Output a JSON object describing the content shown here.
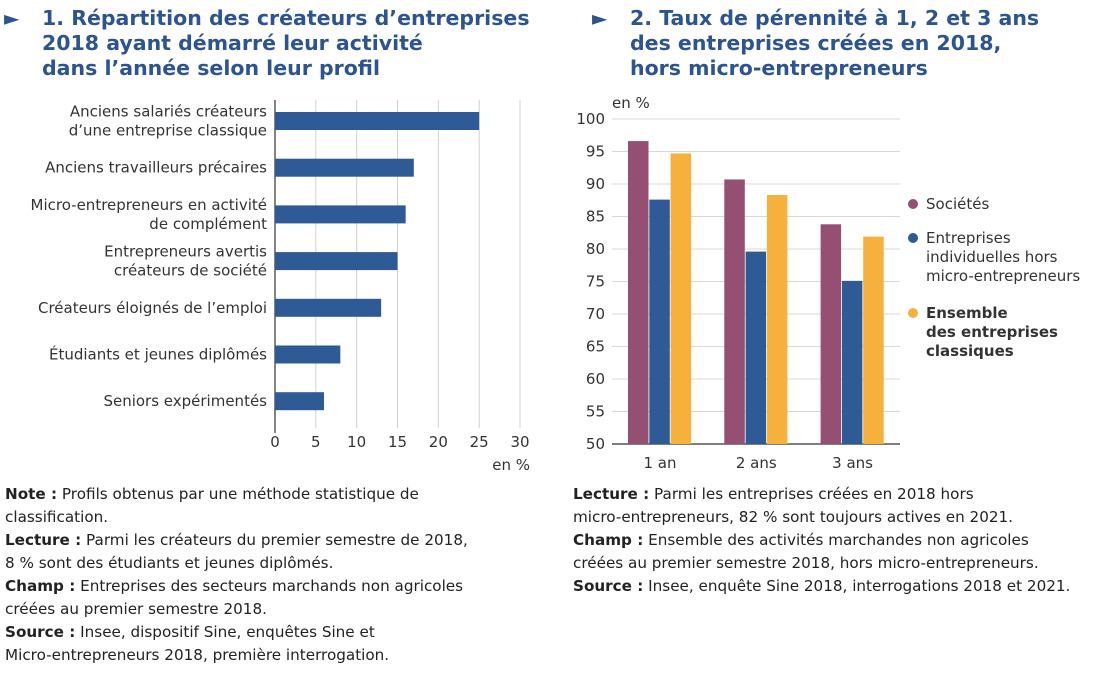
{
  "chart_data": [
    {
      "type": "bar",
      "orientation": "horizontal",
      "title_lines": [
        "1. Répartition des créateurs d’entreprises",
        "2018 ayant démarré leur activité",
        "dans l’année selon leur profil"
      ],
      "categories": [
        [
          "Anciens salariés créateurs",
          "d’une entreprise classique"
        ],
        [
          "Anciens travailleurs précaires"
        ],
        [
          "Micro-entrepreneurs en activité",
          "de complément"
        ],
        [
          "Entrepreneurs avertis",
          "créateurs de société"
        ],
        [
          "Créateurs éloignés de l’emploi"
        ],
        [
          "Étudiants et jeunes diplômés"
        ],
        [
          "Seniors expérimentés"
        ]
      ],
      "values": [
        25,
        17,
        16,
        15,
        13,
        8,
        6
      ],
      "xlim": [
        0,
        30
      ],
      "xticks": [
        "0",
        "5",
        "10",
        "15",
        "20",
        "25",
        "30"
      ],
      "xlabel": "en %",
      "grid": true,
      "color": "#2e5a96"
    },
    {
      "type": "bar",
      "title_lines": [
        "2. Taux de pérennité à 1, 2 et 3 ans",
        "des entreprises créées en 2018,",
        "hors micro-entrepreneurs"
      ],
      "categories": [
        "1 an",
        "2 ans",
        "3 ans"
      ],
      "ylabel": "en %",
      "ylim": [
        50,
        100
      ],
      "yticks": [
        "100",
        "95",
        "90",
        "85",
        "80",
        "75",
        "70",
        "65",
        "60",
        "55",
        "50"
      ],
      "grid": true,
      "legend_position": "right",
      "series": [
        {
          "name_lines": [
            "Sociétés"
          ],
          "bold": false,
          "color": "#954f72",
          "values": [
            96.6,
            90.7,
            83.8
          ]
        },
        {
          "name_lines": [
            "Entreprises",
            "individuelles hors",
            "micro-entrepreneurs"
          ],
          "bold": false,
          "color": "#2e5a96",
          "values": [
            87.6,
            79.6,
            75.1
          ]
        },
        {
          "name_lines": [
            "Ensemble",
            "des entreprises",
            "classiques"
          ],
          "bold": true,
          "color": "#f6b13c",
          "values": [
            94.7,
            88.3,
            81.9
          ]
        }
      ]
    }
  ],
  "notes_left": [
    {
      "label": "Note :",
      "text": " Profils obtenus par une méthode statistique de",
      "cont": "classification."
    },
    {
      "label": "Lecture :",
      "text": " Parmi les créateurs du premier semestre de 2018,",
      "cont": "8 % sont des étudiants et jeunes diplômés."
    },
    {
      "label": "Champ :",
      "text": " Entreprises des secteurs marchands non agricoles",
      "cont": "créées au premier semestre 2018."
    },
    {
      "label": "Source :",
      "text": " Insee, dispositif Sine, enquêtes Sine et",
      "cont": "Micro-entrepreneurs 2018, première interrogation."
    }
  ],
  "notes_right": [
    {
      "label": "Lecture :",
      "text": " Parmi les entreprises créées en 2018 hors",
      "cont": "micro-entrepreneurs, 82 % sont toujours actives en 2021."
    },
    {
      "label": "Champ :",
      "text": " Ensemble des activités marchandes non agricoles",
      "cont": "créées au premier semestre 2018, hors micro-entrepreneurs."
    },
    {
      "label": "Source :",
      "text": " Insee, enquête Sine 2018, interrogations 2018 et 2021.",
      "cont": ""
    }
  ],
  "arrow_icon": "►"
}
